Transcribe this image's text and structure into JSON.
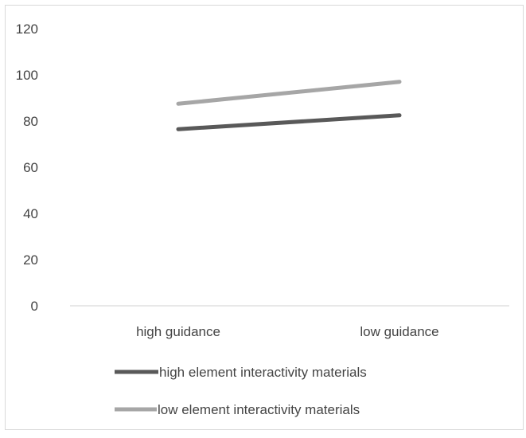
{
  "chart_data": {
    "type": "line",
    "categories": [
      "high guidance",
      "low guidance"
    ],
    "series": [
      {
        "name": "high element interactivity materials",
        "values": [
          76.5,
          82.5
        ],
        "color": "#595959"
      },
      {
        "name": "low element interactivity materials",
        "values": [
          87.5,
          97
        ],
        "color": "#a6a6a6"
      }
    ],
    "y_ticks": [
      "0",
      "20",
      "40",
      "60",
      "80",
      "100",
      "120"
    ],
    "ylim": [
      0,
      120
    ],
    "grid": false,
    "legend": "bottom"
  }
}
